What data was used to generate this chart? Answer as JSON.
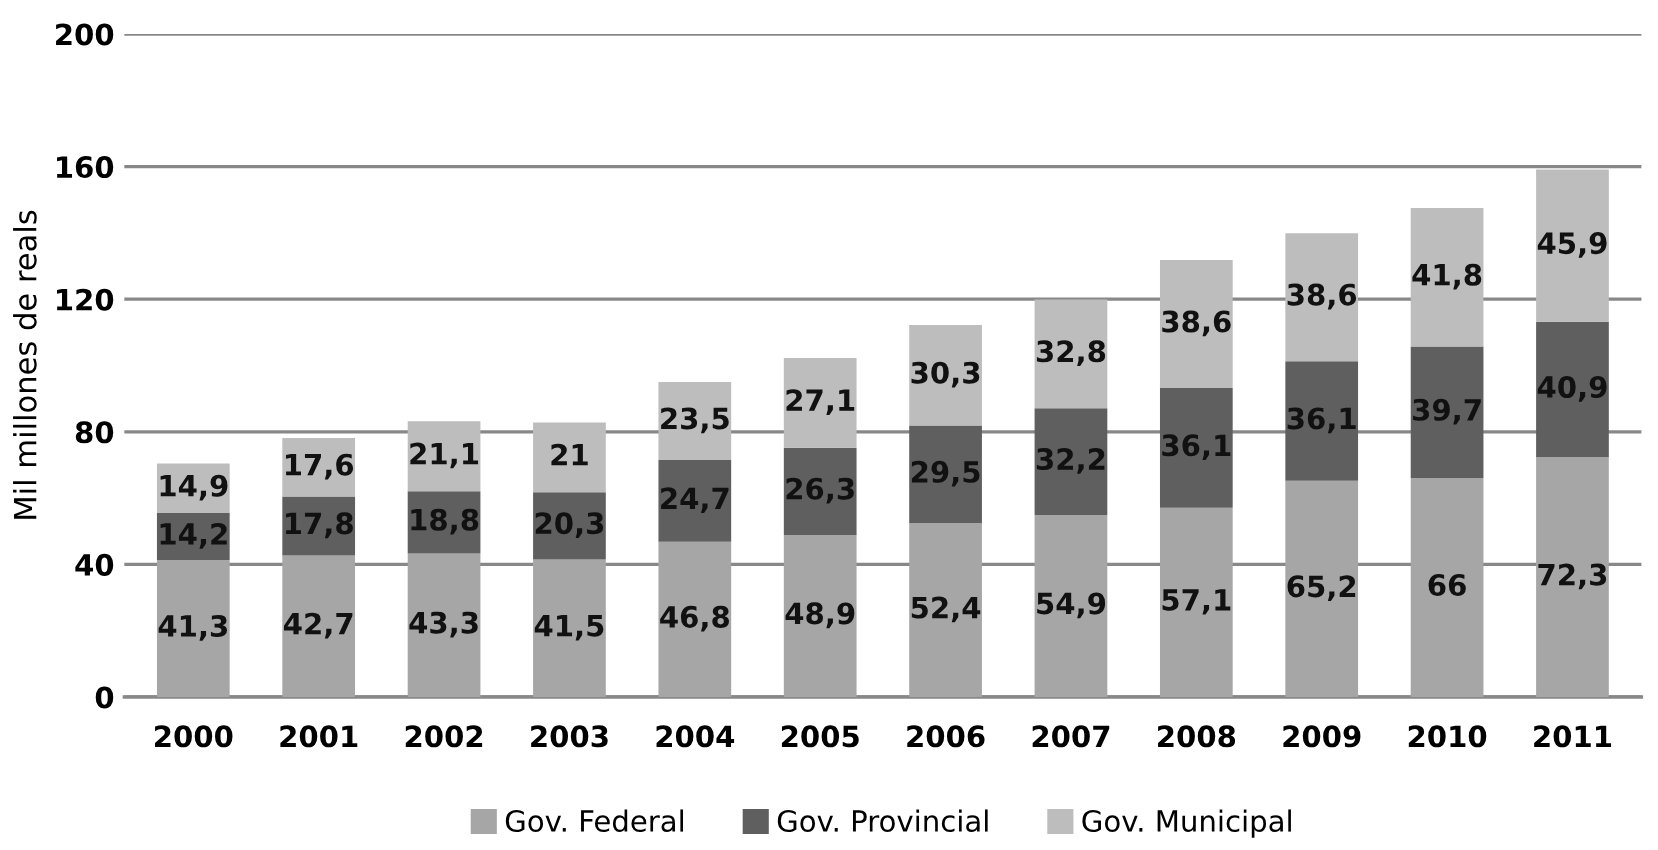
{
  "chart_data": {
    "type": "bar",
    "stacked": true,
    "ylabel": "Mil millones de reals",
    "categories": [
      "2000",
      "2001",
      "2002",
      "2003",
      "2004",
      "2005",
      "2006",
      "2007",
      "2008",
      "2009",
      "2010",
      "2011"
    ],
    "series": [
      {
        "name": "Gov. Federal",
        "color": "#a6a6a6",
        "values": [
          41.3,
          42.7,
          43.3,
          41.5,
          46.8,
          48.9,
          52.4,
          54.9,
          57.1,
          65.2,
          66,
          72.3
        ],
        "value_labels": [
          "41,3",
          "42,7",
          "43,3",
          "41,5",
          "46,8",
          "48,9",
          "52,4",
          "54,9",
          "57,1",
          "65,2",
          "66",
          "72,3"
        ]
      },
      {
        "name": "Gov. Provincial",
        "color": "#5f5f5f",
        "values": [
          14.2,
          17.8,
          18.8,
          20.3,
          24.7,
          26.3,
          29.5,
          32.2,
          36.1,
          36.1,
          39.7,
          40.9
        ],
        "value_labels": [
          "14,2",
          "17,8",
          "18,8",
          "20,3",
          "24,7",
          "26,3",
          "29,5",
          "32,2",
          "36,1",
          "36,1",
          "39,7",
          "40,9"
        ]
      },
      {
        "name": "Gov. Municipal",
        "color": "#bdbdbd",
        "values": [
          14.9,
          17.6,
          21.1,
          21,
          23.5,
          27.1,
          30.3,
          32.8,
          38.6,
          38.6,
          41.8,
          45.9
        ],
        "value_labels": [
          "14,9",
          "17,6",
          "21,1",
          "21",
          "23,5",
          "27,1",
          "30,3",
          "32,8",
          "38,6",
          "38,6",
          "41,8",
          "45,9"
        ]
      }
    ],
    "ylim": [
      0,
      200
    ],
    "yticks": [
      0,
      40,
      80,
      120,
      160,
      200
    ],
    "grid": "y",
    "legend": "bottom"
  }
}
